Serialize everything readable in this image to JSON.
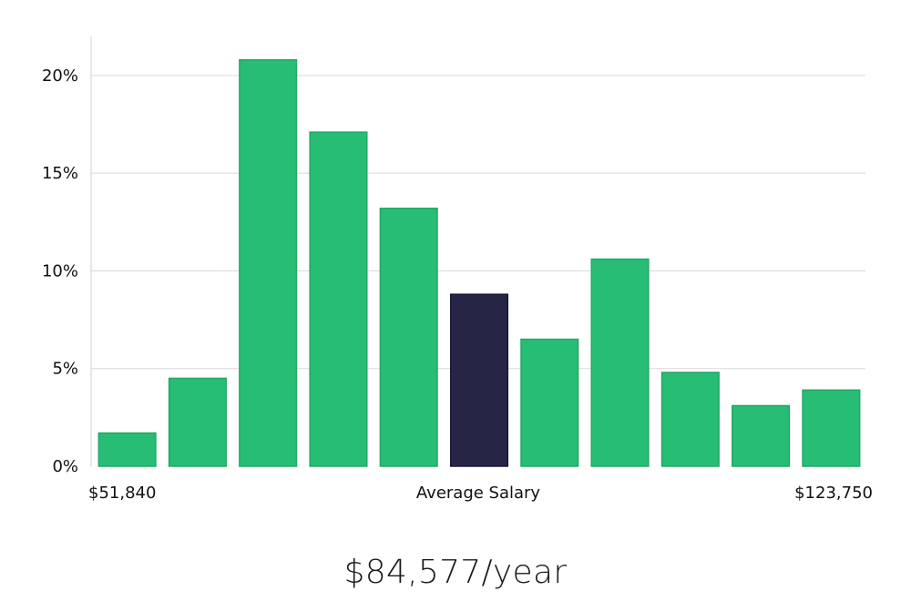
{
  "chart_data": {
    "type": "bar",
    "categories": [
      "1",
      "2",
      "3",
      "4",
      "5",
      "6",
      "7",
      "8",
      "9",
      "10",
      "11"
    ],
    "values": [
      1.7,
      4.5,
      20.8,
      17.1,
      13.2,
      8.8,
      6.5,
      10.6,
      4.8,
      3.1,
      3.9
    ],
    "highlight_index": 5,
    "ylim": [
      0,
      22
    ],
    "yticks": [
      0,
      5,
      10,
      15,
      20
    ],
    "ytick_labels": [
      "0%",
      "5%",
      "10%",
      "15%",
      "20%"
    ],
    "grid": true,
    "x_min_label": "$51,840",
    "x_mid_label": "Average Salary",
    "x_max_label": "$123,750",
    "colors": {
      "bar": "#27bd74",
      "highlight": "#272546",
      "grid": "#d9d9d9"
    }
  },
  "summary": {
    "average_salary": "$84,577/year"
  }
}
